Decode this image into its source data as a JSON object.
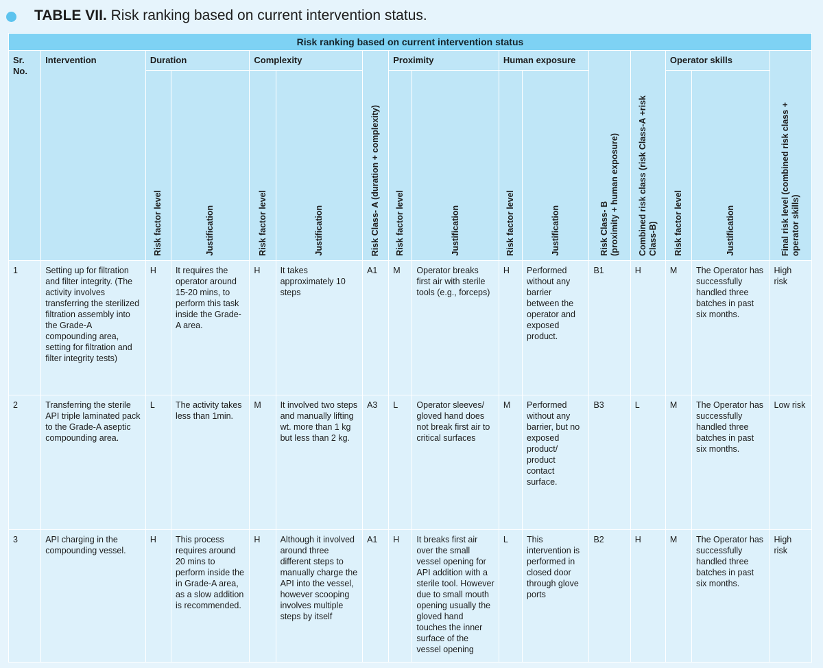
{
  "caption": {
    "label": "TABLE VII.",
    "text": "Risk ranking based on current intervention status."
  },
  "table": {
    "banner": "Risk ranking based on current intervention status",
    "headers": {
      "sr_no": "Sr. No.",
      "intervention": "Intervention",
      "duration": "Duration",
      "complexity": "Complexity",
      "risk_class_a": "Risk Class- A (duration + complexity)",
      "proximity": "Proximity",
      "human_exposure": "Human exposure",
      "risk_class_b_line1": "Risk Class- B",
      "risk_class_b_line2": "(proximity + human exposure)",
      "combined_line1": "Combined risk class (risk Class-A +risk",
      "combined_line2": "Class-B)",
      "operator_skills": "Operator skills",
      "final_line1": "Final risk level (combined risk class +",
      "final_line2": "operator skills)",
      "risk_factor_level": "Risk factor level",
      "justification": "Justification"
    },
    "rows": [
      {
        "sr": "1",
        "intervention": "Setting up for filtration and filter integrity. (The activity involves transferring the sterilized filtration assembly into the Grade-A compounding area, setting for filtration and filter integrity tests)",
        "dur_level": "H",
        "dur_just": "It requires the operator around 15-20 mins, to perform this task inside the Grade-A area.",
        "comp_level": "H",
        "comp_just": "It takes approximately 10 steps",
        "class_a": "A1",
        "prox_level": "M",
        "prox_just": "Operator breaks first air with sterile tools (e.g., forceps)",
        "hum_level": "H",
        "hum_just": "Performed without any barrier between the operator and exposed product.",
        "class_b": "B1",
        "combined": "H",
        "op_level": "M",
        "op_just": "The Operator has successfully handled three batches in past six months.",
        "final": "High risk"
      },
      {
        "sr": "2",
        "intervention": "Transferring the sterile API triple laminated pack to the Grade-A aseptic compounding area.",
        "dur_level": "L",
        "dur_just": "The activity takes less than 1min.",
        "comp_level": "M",
        "comp_just": "It involved two steps and manually lifting wt. more than 1 kg but less than 2 kg.",
        "class_a": "A3",
        "prox_level": "L",
        "prox_just": "Operator sleeves/ gloved hand does not break first air to critical surfaces",
        "hum_level": "M",
        "hum_just": "Performed without any barrier, but no exposed product/ product contact surface.",
        "class_b": "B3",
        "combined": "L",
        "op_level": "M",
        "op_just": "The Operator has successfully handled three batches in past six months.",
        "final": "Low risk"
      },
      {
        "sr": "3",
        "intervention": "API charging in the compounding vessel.",
        "dur_level": "H",
        "dur_just": "This process requires around 20 mins to perform inside the in Grade-A area, as a slow addition is recommended.",
        "comp_level": "H",
        "comp_just": "Although it involved around three different steps to manually charge the API into the vessel, however scooping involves multiple steps by itself",
        "class_a": "A1",
        "prox_level": "H",
        "prox_just": "It breaks first air over the small vessel opening for API addition with a sterile tool. However due to small mouth opening usually the gloved hand touches the inner surface of the vessel opening",
        "hum_level": "L",
        "hum_just": "This intervention is performed in closed door through glove ports",
        "class_b": "B2",
        "combined": "H",
        "op_level": "M",
        "op_just": "The Operator has successfully handled three batches in past six months.",
        "final": "High risk"
      }
    ]
  }
}
